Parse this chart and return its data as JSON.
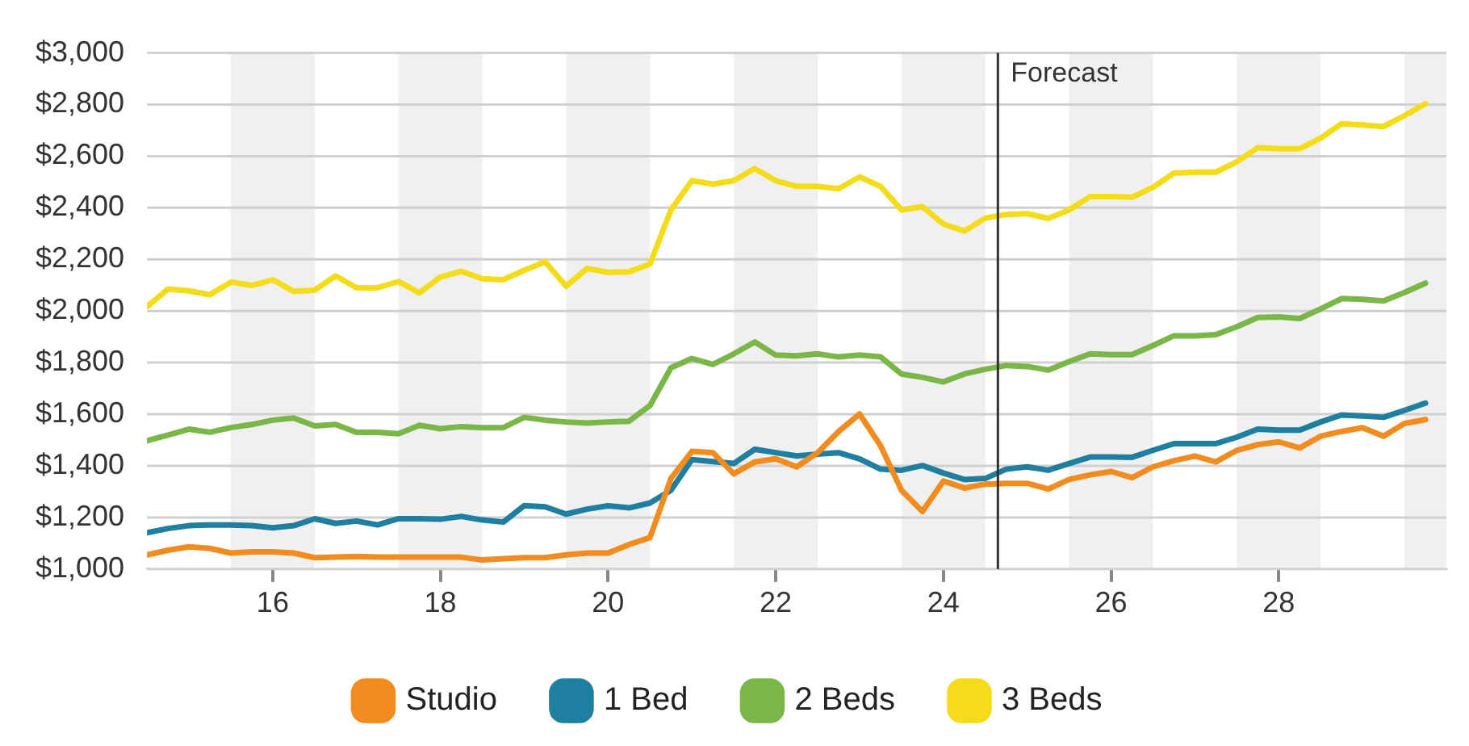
{
  "chart_data": {
    "type": "line",
    "x": [
      15,
      15.25,
      15.5,
      15.75,
      16,
      16.25,
      16.5,
      16.75,
      17,
      17.25,
      17.5,
      17.75,
      18,
      18.25,
      18.5,
      18.75,
      19,
      19.25,
      19.5,
      19.75,
      20,
      20.25,
      20.5,
      20.75,
      21,
      21.25,
      21.5,
      21.75,
      22,
      22.25,
      22.5,
      22.75,
      23,
      23.25,
      23.5,
      23.75,
      24,
      24.25,
      24.5,
      24.75,
      25,
      25.25,
      25.5,
      25.75,
      26,
      26.25,
      26.5,
      26.75,
      27,
      27.25,
      27.5,
      27.75,
      28,
      28.25,
      28.5,
      28.75,
      29,
      29.25,
      29.5,
      29.75,
      30,
      30.25
    ],
    "series": [
      {
        "name": "Studio",
        "color": "#f28c1e",
        "values": [
          1055,
          1073,
          1086,
          1080,
          1062,
          1067,
          1067,
          1062,
          1044,
          1046,
          1049,
          1046,
          1046,
          1046,
          1046,
          1046,
          1035,
          1040,
          1044,
          1044,
          1055,
          1062,
          1062,
          1095,
          1122,
          1351,
          1456,
          1451,
          1369,
          1415,
          1427,
          1396,
          1451,
          1533,
          1601,
          1478,
          1305,
          1223,
          1341,
          1314,
          1329,
          1332,
          1332,
          1310,
          1347,
          1365,
          1378,
          1354,
          1396,
          1420,
          1438,
          1415,
          1460,
          1482,
          1493,
          1469,
          1515,
          1533,
          1548,
          1515,
          1564,
          1579
        ]
      },
      {
        "name": "1 Bed",
        "color": "#1f7fa0",
        "values": [
          1141,
          1157,
          1168,
          1171,
          1171,
          1168,
          1160,
          1168,
          1195,
          1177,
          1186,
          1171,
          1195,
          1195,
          1193,
          1204,
          1190,
          1182,
          1246,
          1241,
          1213,
          1232,
          1245,
          1237,
          1256,
          1305,
          1424,
          1416,
          1409,
          1464,
          1451,
          1438,
          1445,
          1451,
          1427,
          1387,
          1383,
          1401,
          1372,
          1347,
          1351,
          1387,
          1396,
          1383,
          1409,
          1434,
          1434,
          1433,
          1460,
          1486,
          1486,
          1486,
          1511,
          1542,
          1538,
          1538,
          1570,
          1597,
          1593,
          1588,
          1615,
          1643
        ]
      },
      {
        "name": "2 Beds",
        "color": "#7ab648",
        "values": [
          1497,
          1519,
          1542,
          1530,
          1548,
          1560,
          1577,
          1585,
          1555,
          1560,
          1530,
          1530,
          1524,
          1557,
          1544,
          1552,
          1548,
          1548,
          1588,
          1577,
          1570,
          1566,
          1570,
          1573,
          1634,
          1780,
          1816,
          1793,
          1834,
          1880,
          1829,
          1826,
          1834,
          1822,
          1829,
          1822,
          1756,
          1743,
          1725,
          1756,
          1774,
          1789,
          1785,
          1771,
          1804,
          1834,
          1831,
          1831,
          1866,
          1904,
          1904,
          1908,
          1939,
          1975,
          1977,
          1971,
          2008,
          2048,
          2045,
          2039,
          2072,
          2108
        ]
      },
      {
        "name": "3 Beds",
        "color": "#f5dc1a",
        "values": [
          2017,
          2085,
          2078,
          2063,
          2112,
          2099,
          2121,
          2076,
          2081,
          2136,
          2090,
          2090,
          2114,
          2070,
          2132,
          2154,
          2125,
          2121,
          2158,
          2191,
          2096,
          2165,
          2150,
          2152,
          2182,
          2392,
          2505,
          2492,
          2505,
          2552,
          2505,
          2483,
          2483,
          2474,
          2520,
          2483,
          2392,
          2404,
          2337,
          2310,
          2360,
          2374,
          2377,
          2359,
          2392,
          2443,
          2443,
          2441,
          2480,
          2534,
          2538,
          2538,
          2578,
          2633,
          2629,
          2629,
          2670,
          2726,
          2721,
          2715,
          2757,
          2803
        ]
      }
    ],
    "xlim": [
      15,
      30.5
    ],
    "xticks": [
      {
        "value": 16.5,
        "label": "16"
      },
      {
        "value": 18.5,
        "label": "18"
      },
      {
        "value": 20.5,
        "label": "20"
      },
      {
        "value": 22.5,
        "label": "22"
      },
      {
        "value": 24.5,
        "label": "24"
      },
      {
        "value": 26.5,
        "label": "26"
      },
      {
        "value": 28.5,
        "label": "28"
      }
    ],
    "ylim": [
      1000,
      3000
    ],
    "yticks": [
      {
        "value": 1000,
        "label": "$1,000"
      },
      {
        "value": 1200,
        "label": "$1,200"
      },
      {
        "value": 1400,
        "label": "$1,400"
      },
      {
        "value": 1600,
        "label": "$1,600"
      },
      {
        "value": 1800,
        "label": "$1,800"
      },
      {
        "value": 2000,
        "label": "$2,000"
      },
      {
        "value": 2200,
        "label": "$2,200"
      },
      {
        "value": 2400,
        "label": "$2,400"
      },
      {
        "value": 2600,
        "label": "$2,600"
      },
      {
        "value": 2800,
        "label": "$2,800"
      },
      {
        "value": 3000,
        "label": "$3,000"
      }
    ],
    "ref_lines": [
      {
        "axis": "x",
        "value": 25.15,
        "label": "Forecast",
        "color": "#333333"
      }
    ],
    "bands": [
      {
        "axis": "x",
        "from": 16,
        "to": 17,
        "color": "#f0f0f0"
      },
      {
        "axis": "x",
        "from": 18,
        "to": 19,
        "color": "#f0f0f0"
      },
      {
        "axis": "x",
        "from": 20,
        "to": 21,
        "color": "#f0f0f0"
      },
      {
        "axis": "x",
        "from": 22,
        "to": 23,
        "color": "#f0f0f0"
      },
      {
        "axis": "x",
        "from": 24,
        "to": 25,
        "color": "#f0f0f0"
      },
      {
        "axis": "x",
        "from": 26,
        "to": 27,
        "color": "#f0f0f0"
      },
      {
        "axis": "x",
        "from": 28,
        "to": 29,
        "color": "#f0f0f0"
      },
      {
        "axis": "x",
        "from": 30,
        "to": 30.5,
        "color": "#f0f0f0"
      }
    ],
    "grid": "y",
    "legend": "bottom",
    "marker": "none",
    "line_style": "solid"
  }
}
